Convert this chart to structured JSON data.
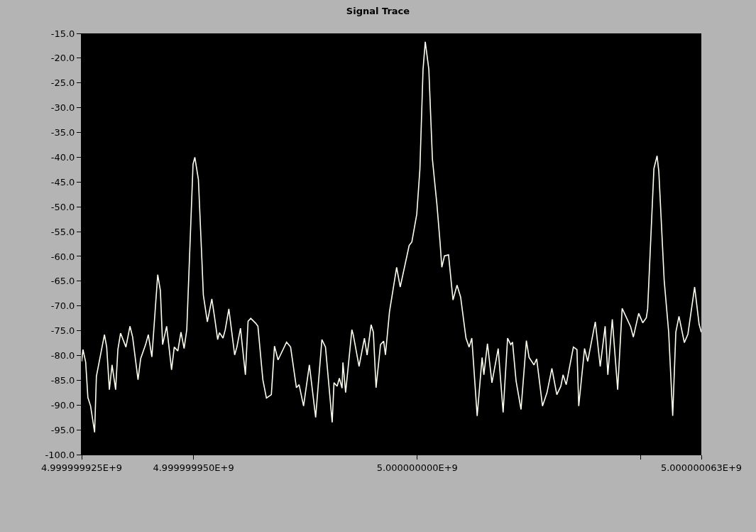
{
  "chart_data": {
    "type": "line",
    "title": "Signal Trace",
    "x": [
      4999999925.0,
      4999999925.3,
      4999999925.9,
      4999999926.4,
      4999999927.0,
      4999999927.9,
      4999999928.3,
      4999999930.1,
      4999999930.6,
      4999999931.2,
      4999999931.8,
      4999999932.6,
      4999999933.1,
      4999999933.7,
      4999999934.9,
      4999999935.8,
      4999999936.4,
      4999999937.6,
      4999999938.2,
      4999999939.3,
      4999999939.9,
      4999999940.7,
      4999999942.0,
      4999999942.6,
      4999999943.1,
      4999999944.0,
      4999999945.1,
      4999999945.7,
      4999999946.5,
      4999999947.2,
      4999999947.9,
      4999999948.5,
      4999999949.9,
      4999999950.3,
      4999999951.1,
      4999999951.9,
      4999999952.2,
      4999999953.1,
      4999999954.1,
      4999999954.7,
      4999999955.4,
      4999999955.8,
      4999999956.6,
      4999999957.1,
      4999999957.9,
      4999999959.2,
      4999999959.7,
      4999999960.5,
      4999999961.6,
      4999999962.2,
      4999999962.8,
      4999999963.9,
      4999999964.4,
      4999999965.5,
      4999999966.3,
      4999999967.4,
      4999999968.1,
      4999999968.9,
      4999999970.8,
      4999999971.7,
      4999999973.0,
      4999999973.6,
      4999999974.6,
      4999999975.9,
      4999999977.3,
      4999999978.7,
      4999999979.5,
      4999999981.0,
      4999999981.4,
      4999999982.1,
      4999999982.6,
      4999999983.2,
      4999999983.4,
      4999999984.0,
      4999999985.4,
      4999999985.7,
      4999999987.0,
      4999999988.2,
      4999999988.8,
      4999999989.7,
      4999999990.2,
      4999999990.8,
      4999999991.8,
      4999999992.5,
      4999999992.9,
      4999999993.8,
      4999999995.4,
      4999999996.2,
      4999999997.7,
      4999999998.2,
      4999999998.8,
      4999999999.9,
      5000000000.6,
      5000000001.3,
      5000000001.8,
      5000000002.6,
      5000000003.4,
      5000000004.4,
      5000000005.1,
      5000000005.5,
      5000000006.1,
      5000000007.0,
      5000000008.0,
      5000000008.9,
      5000000009.7,
      5000000010.9,
      5000000011.6,
      5000000012.2,
      5000000013.4,
      5000000014.5,
      5000000014.9,
      5000000015.7,
      5000000016.7,
      5000000018.1,
      5000000019.2,
      5000000020.2,
      5000000020.9,
      5000000021.3,
      5000000022.1,
      5000000023.2,
      5000000024.4,
      5000000025.0,
      5000000026.1,
      5000000026.7,
      5000000028.0,
      5000000029.0,
      5000000030.1,
      5000000031.2,
      5000000032.1,
      5000000032.6,
      5000000033.3,
      5000000034.9,
      5000000035.7,
      5000000036.1,
      5000000037.4,
      5000000038.1,
      5000000039.8,
      5000000040.9,
      5000000042.0,
      5000000042.6,
      5000000043.6,
      5000000044.8,
      5000000045.8,
      5000000047.7,
      5000000048.3,
      5000000049.5,
      5000000050.4,
      5000000051.2,
      5000000051.5,
      5000000052.9,
      5000000053.6,
      5000000054.0,
      5000000055.2,
      5000000056.2,
      5000000057.1,
      5000000057.8,
      5000000058.5,
      5000000059.7,
      5000000060.5,
      5000000062.0,
      5000000063.0,
      5000000063.5
    ],
    "series": [
      {
        "color": "#fffff0",
        "values": [
          -81.2,
          -78.8,
          -81.3,
          -88.5,
          -90.2,
          -95.5,
          -84.2,
          -75.8,
          -78.3,
          -86.9,
          -81.9,
          -86.9,
          -78.8,
          -75.5,
          -78.3,
          -74.1,
          -76.3,
          -84.9,
          -80.6,
          -77.8,
          -75.8,
          -80.3,
          -63.7,
          -66.9,
          -77.8,
          -74.1,
          -82.9,
          -78.3,
          -79.1,
          -75.3,
          -78.6,
          -74.8,
          -41.4,
          -40.0,
          -44.5,
          -61.2,
          -67.8,
          -73.2,
          -68.6,
          -72.2,
          -76.8,
          -75.4,
          -76.5,
          -74.8,
          -70.6,
          -79.9,
          -78.3,
          -74.5,
          -83.9,
          -73.1,
          -72.5,
          -73.5,
          -74.1,
          -84.9,
          -88.6,
          -87.9,
          -78.1,
          -80.9,
          -77.3,
          -78.3,
          -86.5,
          -85.9,
          -90.2,
          -81.9,
          -92.5,
          -76.8,
          -78.3,
          -93.5,
          -85.5,
          -86.2,
          -84.6,
          -86.6,
          -81.4,
          -87.5,
          -74.8,
          -75.8,
          -82.2,
          -76.5,
          -79.9,
          -73.8,
          -75.3,
          -86.5,
          -77.8,
          -77.1,
          -79.9,
          -71.2,
          -62.2,
          -66.2,
          -59.9,
          -57.8,
          -57.1,
          -51.5,
          -42.4,
          -22.3,
          -16.7,
          -22.3,
          -40.4,
          -49.5,
          -57.1,
          -62.2,
          -59.9,
          -59.7,
          -68.8,
          -65.8,
          -68.2,
          -76.5,
          -78.3,
          -76.5,
          -92.2,
          -80.4,
          -83.9,
          -77.6,
          -85.5,
          -78.6,
          -91.5,
          -76.5,
          -77.8,
          -77.3,
          -85.2,
          -90.9,
          -77.0,
          -80.4,
          -81.9,
          -80.7,
          -90.2,
          -87.5,
          -82.6,
          -87.9,
          -86.2,
          -83.9,
          -85.9,
          -78.3,
          -78.8,
          -90.2,
          -78.6,
          -81.2,
          -73.2,
          -82.2,
          -74.1,
          -83.9,
          -72.7,
          -86.9,
          -70.5,
          -74.2,
          -76.3,
          -71.5,
          -73.4,
          -72.4,
          -70.6,
          -42.3,
          -39.7,
          -42.9,
          -64.9,
          -75.3,
          -92.2,
          -75.3,
          -72.1,
          -77.4,
          -75.7,
          -66.2,
          -73.7,
          -75.3
        ]
      }
    ],
    "xlim": [
      4999999925,
      5000000063.5
    ],
    "xticks": [
      {
        "value": 4999999925,
        "label": "4.999999925E+9"
      },
      {
        "value": 4999999950,
        "label": "4.999999950E+9"
      },
      {
        "value": 5000000000,
        "label": "5.000000000E+9"
      },
      {
        "value": 5000000050,
        "label": null
      },
      {
        "value": 5000000063.5,
        "label": "5.000000063E+9"
      }
    ],
    "ylim": [
      -100,
      -15
    ],
    "yticks": [
      {
        "value": -15,
        "label": "-15.0"
      },
      {
        "value": -20,
        "label": "-20.0"
      },
      {
        "value": -25,
        "label": "-25.0"
      },
      {
        "value": -30,
        "label": "-30.0"
      },
      {
        "value": -35,
        "label": "-35.0"
      },
      {
        "value": -40,
        "label": "-40.0"
      },
      {
        "value": -45,
        "label": "-45.0"
      },
      {
        "value": -50,
        "label": "-50.0"
      },
      {
        "value": -55,
        "label": "-55.0"
      },
      {
        "value": -60,
        "label": "-60.0"
      },
      {
        "value": -65,
        "label": "-65.0"
      },
      {
        "value": -70,
        "label": "-70.0"
      },
      {
        "value": -75,
        "label": "-75.0"
      },
      {
        "value": -80,
        "label": "-80.0"
      },
      {
        "value": -85,
        "label": "-85.0"
      },
      {
        "value": -90,
        "label": "-90.0"
      },
      {
        "value": -95,
        "label": "-95.0"
      },
      {
        "value": -100,
        "label": "-100.0"
      }
    ],
    "marker": "none",
    "line_style": "solid"
  }
}
